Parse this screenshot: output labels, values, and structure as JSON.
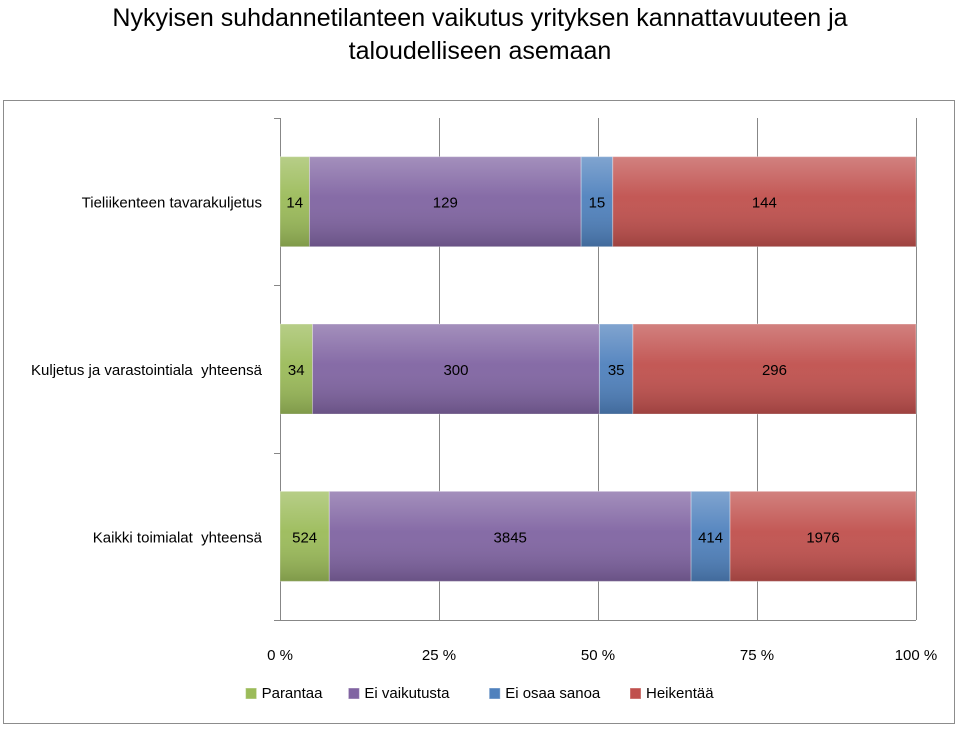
{
  "chart_data": {
    "type": "bar",
    "orientation": "horizontal",
    "stacked": "percent",
    "title": "Nykyisen suhdannetilanteen vaikutus yrityksen kannattavuuteen ja taloudelliseen asemaan",
    "title_lines": [
      "Nykyisen suhdannetilanteen vaikutus yrityksen kannattavuuteen ja",
      "taloudelliseen asemaan"
    ],
    "categories": [
      "Tieliikenteen tavarakuljetus",
      "Kuljetus ja varastointiala  yhteensä",
      "Kaikki toimialat  yhteensä"
    ],
    "series": [
      {
        "name": "Parantaa",
        "color": "#9bbb59",
        "values": [
          14,
          34,
          524
        ]
      },
      {
        "name": "Ei vaikutusta",
        "color": "#8064a2",
        "values": [
          129,
          300,
          3845
        ]
      },
      {
        "name": "Ei osaa sanoa",
        "color": "#4f81bd",
        "values": [
          15,
          35,
          414
        ]
      },
      {
        "name": "Heikentää",
        "color": "#c0504d",
        "values": [
          144,
          296,
          1976
        ]
      }
    ],
    "xlim": [
      0,
      100
    ],
    "x_ticks": [
      0,
      25,
      50,
      75,
      100
    ],
    "x_tick_labels": [
      "0 %",
      "25 %",
      "50 %",
      "75 %",
      "100 %"
    ],
    "grid": "vertical",
    "legend": "bottom",
    "data_labels": true
  }
}
